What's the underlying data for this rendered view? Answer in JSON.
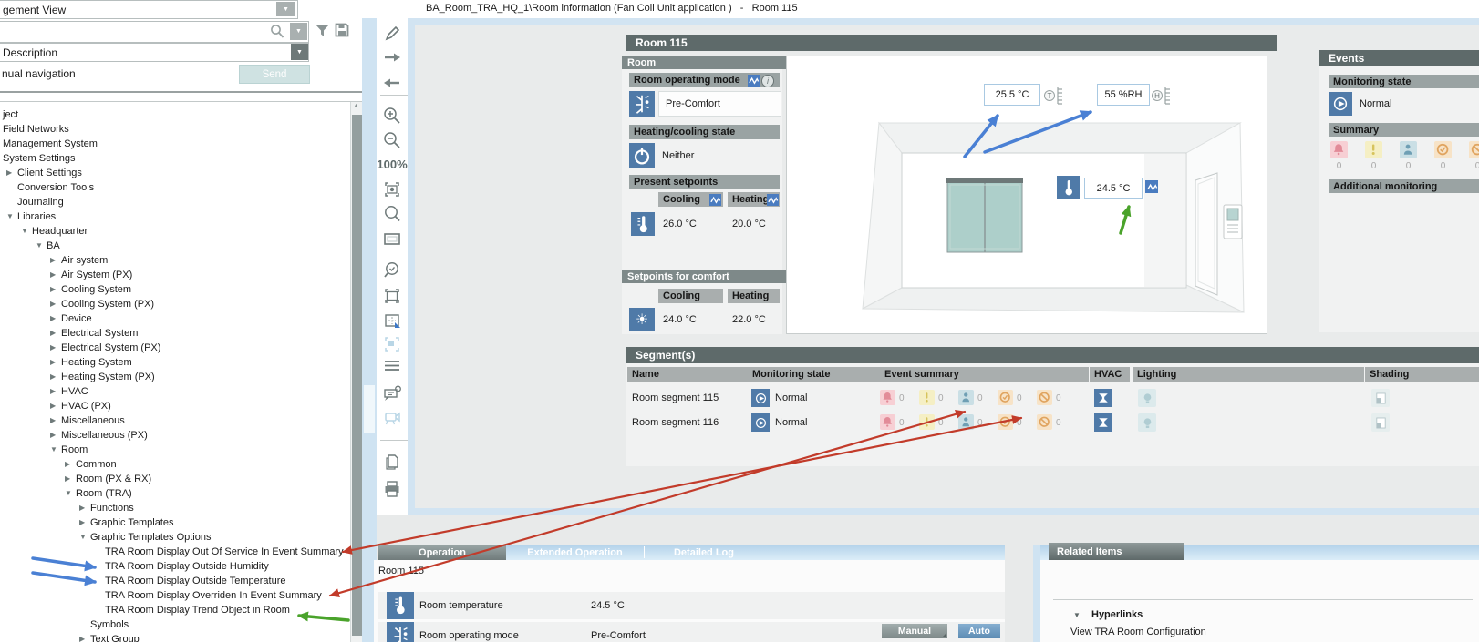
{
  "window": {
    "breadcrumb": "BA_Room_TRA_HQ_1\\Room information (Fan Coil Unit application )   -   Room 115"
  },
  "left_panel": {
    "view_selector": "gement View",
    "search_value": "",
    "filter_by": "Description",
    "nav_label": "nual navigation",
    "send_label": "Send",
    "tree": [
      {
        "label": "ject",
        "level": 0,
        "state": "none"
      },
      {
        "label": "Field Networks",
        "level": 0,
        "state": "none"
      },
      {
        "label": "Management System",
        "level": 0,
        "state": "none"
      },
      {
        "label": "System Settings",
        "level": 0,
        "state": "none"
      },
      {
        "label": "Client Settings",
        "level": 1,
        "state": "collapsed"
      },
      {
        "label": "Conversion Tools",
        "level": 1,
        "state": "none"
      },
      {
        "label": "Journaling",
        "level": 1,
        "state": "none"
      },
      {
        "label": "Libraries",
        "level": 1,
        "state": "expanded"
      },
      {
        "label": "Headquarter",
        "level": 2,
        "state": "expanded"
      },
      {
        "label": "BA",
        "level": 3,
        "state": "expanded"
      },
      {
        "label": "Air system",
        "level": 4,
        "state": "collapsed"
      },
      {
        "label": "Air System (PX)",
        "level": 4,
        "state": "collapsed"
      },
      {
        "label": "Cooling System",
        "level": 4,
        "state": "collapsed"
      },
      {
        "label": "Cooling System (PX)",
        "level": 4,
        "state": "collapsed"
      },
      {
        "label": "Device",
        "level": 4,
        "state": "collapsed"
      },
      {
        "label": "Electrical System",
        "level": 4,
        "state": "collapsed"
      },
      {
        "label": "Electrical System (PX)",
        "level": 4,
        "state": "collapsed"
      },
      {
        "label": "Heating System",
        "level": 4,
        "state": "collapsed"
      },
      {
        "label": "Heating System (PX)",
        "level": 4,
        "state": "collapsed"
      },
      {
        "label": "HVAC",
        "level": 4,
        "state": "collapsed"
      },
      {
        "label": "HVAC (PX)",
        "level": 4,
        "state": "collapsed"
      },
      {
        "label": "Miscellaneous",
        "level": 4,
        "state": "collapsed"
      },
      {
        "label": "Miscellaneous (PX)",
        "level": 4,
        "state": "collapsed"
      },
      {
        "label": "Room",
        "level": 4,
        "state": "expanded"
      },
      {
        "label": "Common",
        "level": 5,
        "state": "collapsed"
      },
      {
        "label": "Room (PX & RX)",
        "level": 5,
        "state": "collapsed"
      },
      {
        "label": "Room (TRA)",
        "level": 5,
        "state": "expanded"
      },
      {
        "label": "Functions",
        "level": 6,
        "state": "collapsed"
      },
      {
        "label": "Graphic Templates",
        "level": 6,
        "state": "collapsed"
      },
      {
        "label": "Graphic Templates Options",
        "level": 6,
        "state": "expanded"
      },
      {
        "label": "TRA Room Display Out Of Service In Event Summary",
        "level": 7,
        "state": "none"
      },
      {
        "label": "TRA Room Display Outside Humidity",
        "level": 7,
        "state": "none"
      },
      {
        "label": "TRA Room Display Outside Temperature",
        "level": 7,
        "state": "none"
      },
      {
        "label": "TRA Room Display Overriden In Event Summary",
        "level": 7,
        "state": "none"
      },
      {
        "label": "TRA Room Display Trend Object in Room",
        "level": 7,
        "state": "none"
      },
      {
        "label": "Symbols",
        "level": 6,
        "state": "none"
      },
      {
        "label": "Text Group",
        "level": 6,
        "state": "collapsed"
      }
    ]
  },
  "toolbar": {
    "zoom_level": "100%",
    "icons": [
      "annotate-pen",
      "forward-arrow",
      "back-arrow",
      "zoom-in",
      "zoom-out",
      "zoom-level",
      "fit-view",
      "magnifier",
      "viewport-rect",
      "search-check",
      "selection-marquee",
      "pane-layout",
      "selection-faded",
      "layers",
      "comment-flag",
      "camera",
      "copy-document",
      "print"
    ]
  },
  "room": {
    "title": "Room 115",
    "panel_title": "Room",
    "operating_mode_label": "Room operating mode",
    "operating_mode": "Pre-Comfort",
    "heating_cooling_label": "Heating/cooling state",
    "heating_cooling": "Neither",
    "present_setpoints_label": "Present setpoints",
    "cooling_label": "Cooling",
    "heating_label": "Heating",
    "present_cooling": "26.0 °C",
    "present_heating": "20.0 °C",
    "comfort_label": "Setpoints for comfort",
    "comfort_cooling": "24.0 °C",
    "comfort_heating": "22.0 °C"
  },
  "graphic": {
    "outside_temperature": "25.5 °C",
    "outside_humidity": "55 %RH",
    "room_temperature": "24.5 °C",
    "temp_sensor_letter": "T",
    "humidity_sensor_letter": "H"
  },
  "events": {
    "title": "Events",
    "monitoring_label": "Monitoring state",
    "monitoring_value": "Normal",
    "summary_label": "Summary",
    "summary": [
      {
        "icon": "alarm",
        "count": "0"
      },
      {
        "icon": "warning",
        "count": "0"
      },
      {
        "icon": "service",
        "count": "0"
      },
      {
        "icon": "fault",
        "count": "0"
      },
      {
        "icon": "disabled",
        "count": "0"
      }
    ],
    "additional_label": "Additional monitoring"
  },
  "segments": {
    "title": "Segment(s)",
    "columns": [
      "Name",
      "Monitoring state",
      "Event summary",
      "HVAC",
      "Lighting",
      "Shading"
    ],
    "rows": [
      {
        "name": "Room segment 115",
        "monitoring": "Normal",
        "events": [
          "0",
          "0",
          "0",
          "0",
          "0"
        ]
      },
      {
        "name": "Room segment 116",
        "monitoring": "Normal",
        "events": [
          "0",
          "0",
          "0",
          "0",
          "0"
        ]
      }
    ]
  },
  "operation": {
    "tabs": [
      {
        "label": "Operation",
        "active": true
      },
      {
        "label": "Extended Operation",
        "active": false
      },
      {
        "label": "Detailed Log",
        "active": false
      }
    ],
    "context": "Room 115",
    "rows": [
      {
        "icon": "thermometer",
        "label": "Room temperature",
        "value": "24.5 °C"
      },
      {
        "icon": "operating-mode",
        "label": "Room operating mode",
        "value": "Pre-Comfort",
        "buttons": [
          "Manual",
          "Auto"
        ]
      }
    ]
  },
  "related": {
    "title": "Related Items",
    "group": "Hyperlinks",
    "links": [
      "View TRA Room Configuration"
    ]
  },
  "annotations": {
    "red": "#c23b2a",
    "blue": "#4a80d4",
    "green": "#4aa32b"
  }
}
